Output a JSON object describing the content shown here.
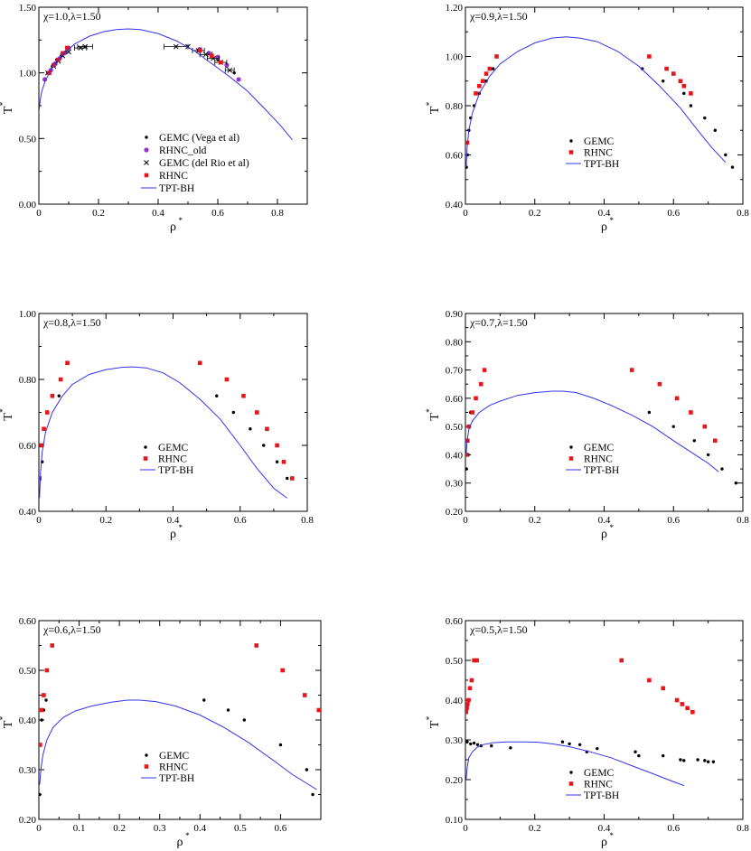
{
  "chart_data": [
    {
      "type": "scatter",
      "title": "χ=1.0,λ=1.50",
      "xlabel": "ρ",
      "xlabel_sup": "*",
      "ylabel": "T",
      "ylabel_sup": "*",
      "xlim": [
        0,
        0.9
      ],
      "ylim": [
        0,
        1.5
      ],
      "xticks": [
        0,
        0.2,
        0.4,
        0.6,
        0.8
      ],
      "xtick_labels": [
        "0",
        "0.2",
        "0.4",
        "0.6",
        "0.8"
      ],
      "yticks": [
        0,
        0.5,
        1.0,
        1.5
      ],
      "ytick_labels": [
        "0.00",
        "0.50",
        "1.00",
        "1.50"
      ],
      "legend_position": "bottom-center",
      "series": [
        {
          "name": "GEMC (Vega et al)",
          "marker": "dot",
          "color": "#000000",
          "x": [
            0.03,
            0.045,
            0.06,
            0.075,
            0.09,
            0.58,
            0.6,
            0.63,
            0.655
          ],
          "y": [
            1.0,
            1.05,
            1.1,
            1.13,
            1.16,
            1.13,
            1.1,
            1.05,
            1.0
          ]
        },
        {
          "name": "RHNC_old",
          "marker": "circle",
          "color": "#9933cc",
          "x": [
            0.02,
            0.04,
            0.055,
            0.07,
            0.085,
            0.1,
            0.54,
            0.57,
            0.6,
            0.63,
            0.67
          ],
          "y": [
            0.95,
            1.02,
            1.07,
            1.11,
            1.15,
            1.19,
            1.18,
            1.15,
            1.12,
            1.06,
            0.95
          ]
        },
        {
          "name": "GEMC (del Rio et al)",
          "marker": "cross",
          "color": "#000000",
          "x": [
            0.03,
            0.05,
            0.065,
            0.08,
            0.1,
            0.14,
            0.155,
            0.46,
            0.5,
            0.535,
            0.56,
            0.585,
            0.61,
            0.64
          ],
          "y": [
            1.0,
            1.05,
            1.09,
            1.13,
            1.16,
            1.19,
            1.2,
            1.2,
            1.2,
            1.17,
            1.14,
            1.11,
            1.08,
            1.02
          ],
          "xerr": [
            0,
            0,
            0,
            0,
            0,
            0.02,
            0.025,
            0.04,
            0,
            0.02,
            0.02,
            0.02,
            0.02,
            0.015
          ]
        },
        {
          "name": "RHNC",
          "marker": "square",
          "color": "#e8151b",
          "x": [
            0.035,
            0.05,
            0.065,
            0.08,
            0.095,
            0.54,
            0.58,
            0.61
          ],
          "y": [
            1.0,
            1.06,
            1.1,
            1.15,
            1.19,
            1.17,
            1.13,
            1.08
          ]
        },
        {
          "name": "TPT-BH",
          "marker": "line",
          "color": "#3333ee",
          "x": [
            0,
            0.005,
            0.01,
            0.02,
            0.035,
            0.05,
            0.08,
            0.12,
            0.17,
            0.22,
            0.26,
            0.3,
            0.34,
            0.4,
            0.46,
            0.52,
            0.58,
            0.64,
            0.7,
            0.76,
            0.81,
            0.85
          ],
          "y": [
            0.7,
            0.8,
            0.86,
            0.93,
            1.0,
            1.06,
            1.14,
            1.22,
            1.28,
            1.315,
            1.33,
            1.335,
            1.33,
            1.3,
            1.245,
            1.17,
            1.07,
            0.97,
            0.86,
            0.72,
            0.6,
            0.49
          ]
        }
      ]
    },
    {
      "type": "scatter",
      "title": "χ=0.9,λ=1.50",
      "xlabel": "ρ",
      "xlabel_sup": "*",
      "ylabel": "T",
      "ylabel_sup": "*",
      "xlim": [
        0,
        0.8
      ],
      "ylim": [
        0.4,
        1.2
      ],
      "xticks": [
        0,
        0.2,
        0.4,
        0.6,
        0.8
      ],
      "xtick_labels": [
        "0",
        "0.2",
        "0.4",
        "0.6",
        "0.8"
      ],
      "yticks": [
        0.4,
        0.6,
        0.8,
        1.0,
        1.2
      ],
      "ytick_labels": [
        "0.40",
        "0.60",
        "0.80",
        "1.00",
        "1.20"
      ],
      "legend_position": "center",
      "series": [
        {
          "name": "GEMC",
          "marker": "dot",
          "color": "#000000",
          "x": [
            0.003,
            0.006,
            0.01,
            0.015,
            0.025,
            0.04,
            0.06,
            0.08,
            0.51,
            0.57,
            0.63,
            0.65,
            0.69,
            0.72,
            0.75,
            0.77
          ],
          "y": [
            0.55,
            0.6,
            0.7,
            0.75,
            0.8,
            0.85,
            0.9,
            0.95,
            0.95,
            0.9,
            0.85,
            0.8,
            0.75,
            0.7,
            0.6,
            0.55
          ]
        },
        {
          "name": "RHNC",
          "marker": "square",
          "color": "#e8151b",
          "x": [
            0.005,
            0.03,
            0.04,
            0.05,
            0.06,
            0.07,
            0.09,
            0.53,
            0.58,
            0.6,
            0.62,
            0.63,
            0.65
          ],
          "y": [
            0.65,
            0.85,
            0.88,
            0.9,
            0.93,
            0.95,
            1.0,
            1.0,
            0.95,
            0.93,
            0.9,
            0.88,
            0.85
          ]
        },
        {
          "name": "TPT-BH",
          "marker": "line",
          "color": "#3333ee",
          "x": [
            0.002,
            0.005,
            0.01,
            0.02,
            0.04,
            0.07,
            0.1,
            0.15,
            0.2,
            0.25,
            0.29,
            0.33,
            0.38,
            0.44,
            0.5,
            0.56,
            0.62,
            0.67,
            0.71,
            0.75
          ],
          "y": [
            0.55,
            0.63,
            0.7,
            0.77,
            0.85,
            0.92,
            0.97,
            1.02,
            1.055,
            1.075,
            1.08,
            1.075,
            1.06,
            1.02,
            0.96,
            0.88,
            0.79,
            0.7,
            0.63,
            0.57
          ]
        }
      ]
    },
    {
      "type": "scatter",
      "title": "χ=0.8,λ=1.50",
      "xlabel": "ρ",
      "xlabel_sup": "*",
      "ylabel": "T",
      "ylabel_sup": "*",
      "xlim": [
        0,
        0.8
      ],
      "ylim": [
        0.4,
        1.0
      ],
      "xticks": [
        0,
        0.2,
        0.4,
        0.6,
        0.8
      ],
      "xtick_labels": [
        "0",
        "0.2",
        "0.4",
        "0.6",
        "0.8"
      ],
      "yticks": [
        0.4,
        0.6,
        0.8,
        1.0
      ],
      "ytick_labels": [
        "0.40",
        "0.60",
        "0.80",
        "1.00"
      ],
      "legend_position": "center",
      "series": [
        {
          "name": "GEMC",
          "marker": "dot",
          "color": "#000000",
          "x": [
            0.002,
            0.01,
            0.04,
            0.06,
            0.53,
            0.58,
            0.63,
            0.67,
            0.71,
            0.74
          ],
          "y": [
            0.5,
            0.55,
            0.75,
            0.75,
            0.75,
            0.7,
            0.65,
            0.6,
            0.55,
            0.5
          ]
        },
        {
          "name": "RHNC",
          "marker": "square",
          "color": "#e8151b",
          "x": [
            0.002,
            0.008,
            0.015,
            0.025,
            0.04,
            0.065,
            0.085,
            0.48,
            0.56,
            0.61,
            0.65,
            0.68,
            0.71,
            0.73,
            0.755
          ],
          "y": [
            0.5,
            0.6,
            0.65,
            0.7,
            0.75,
            0.8,
            0.85,
            0.85,
            0.8,
            0.75,
            0.7,
            0.65,
            0.6,
            0.55,
            0.5
          ]
        },
        {
          "name": "TPT-BH",
          "marker": "line",
          "color": "#3333ee",
          "x": [
            0.002,
            0.005,
            0.01,
            0.02,
            0.04,
            0.07,
            0.1,
            0.15,
            0.2,
            0.25,
            0.28,
            0.32,
            0.37,
            0.42,
            0.48,
            0.54,
            0.6,
            0.65,
            0.7,
            0.74
          ],
          "y": [
            0.44,
            0.52,
            0.58,
            0.64,
            0.7,
            0.75,
            0.785,
            0.815,
            0.83,
            0.837,
            0.838,
            0.835,
            0.82,
            0.79,
            0.74,
            0.68,
            0.6,
            0.53,
            0.47,
            0.44
          ]
        }
      ]
    },
    {
      "type": "scatter",
      "title": "χ=0.7,λ=1.50",
      "xlabel": "ρ",
      "xlabel_sup": "*",
      "ylabel": "T",
      "ylabel_sup": "*",
      "xlim": [
        0,
        0.8
      ],
      "ylim": [
        0.2,
        0.9
      ],
      "xticks": [
        0,
        0.2,
        0.4,
        0.6,
        0.8
      ],
      "xtick_labels": [
        "0",
        "0.2",
        "0.4",
        "0.6",
        "0.8"
      ],
      "yticks": [
        0.2,
        0.3,
        0.4,
        0.5,
        0.6,
        0.7,
        0.8,
        0.9
      ],
      "ytick_labels": [
        "0.20",
        "0.30",
        "0.40",
        "0.50",
        "0.60",
        "0.70",
        "0.80",
        "0.90"
      ],
      "legend_position": "center-right",
      "series": [
        {
          "name": "GEMC",
          "marker": "dot",
          "color": "#000000",
          "x": [
            0.003,
            0.008,
            0.015,
            0.53,
            0.6,
            0.66,
            0.7,
            0.74,
            0.78
          ],
          "y": [
            0.35,
            0.4,
            0.55,
            0.55,
            0.5,
            0.45,
            0.4,
            0.35,
            0.3
          ]
        },
        {
          "name": "RHNC",
          "marker": "square",
          "color": "#e8151b",
          "x": [
            0.003,
            0.006,
            0.01,
            0.02,
            0.03,
            0.045,
            0.055,
            0.48,
            0.56,
            0.61,
            0.65,
            0.69,
            0.72
          ],
          "y": [
            0.4,
            0.45,
            0.5,
            0.55,
            0.6,
            0.65,
            0.7,
            0.7,
            0.65,
            0.6,
            0.55,
            0.5,
            0.45
          ]
        },
        {
          "name": "TPT-BH",
          "marker": "line",
          "color": "#3333ee",
          "x": [
            0.002,
            0.005,
            0.01,
            0.02,
            0.04,
            0.07,
            0.1,
            0.15,
            0.2,
            0.25,
            0.28,
            0.32,
            0.37,
            0.42,
            0.48,
            0.54,
            0.6,
            0.65,
            0.7,
            0.73
          ],
          "y": [
            0.4,
            0.45,
            0.49,
            0.52,
            0.55,
            0.575,
            0.59,
            0.61,
            0.62,
            0.625,
            0.625,
            0.62,
            0.6,
            0.575,
            0.54,
            0.5,
            0.45,
            0.41,
            0.37,
            0.34
          ]
        }
      ]
    },
    {
      "type": "scatter",
      "title": "χ=0.6,λ=1.50",
      "xlabel": "ρ",
      "xlabel_sup": "*",
      "ylabel": "T",
      "ylabel_sup": "*",
      "xlim": [
        0,
        0.7
      ],
      "ylim": [
        0.2,
        0.6
      ],
      "xticks": [
        0,
        0.1,
        0.2,
        0.3,
        0.4,
        0.5,
        0.6
      ],
      "xtick_labels": [
        "0",
        "0.1",
        "0.2",
        "0.3",
        "0.4",
        "0.5",
        "0.6"
      ],
      "yticks": [
        0.2,
        0.3,
        0.4,
        0.5,
        0.6
      ],
      "ytick_labels": [
        "0.20",
        "0.30",
        "0.40",
        "0.50",
        "0.60"
      ],
      "legend_position": "bottom-left",
      "series": [
        {
          "name": "GEMC",
          "marker": "dot",
          "color": "#000000",
          "x": [
            0.002,
            0.004,
            0.007,
            0.012,
            0.018,
            0.41,
            0.47,
            0.51,
            0.6,
            0.665,
            0.68
          ],
          "y": [
            0.25,
            0.35,
            0.4,
            0.42,
            0.44,
            0.44,
            0.42,
            0.4,
            0.35,
            0.3,
            0.25
          ]
        },
        {
          "name": "RHNC",
          "marker": "square",
          "color": "#e8151b",
          "x": [
            0.003,
            0.007,
            0.012,
            0.02,
            0.033,
            0.54,
            0.605,
            0.66,
            0.695
          ],
          "y": [
            0.35,
            0.42,
            0.45,
            0.5,
            0.55,
            0.55,
            0.5,
            0.45,
            0.42
          ]
        },
        {
          "name": "TPT-BH",
          "marker": "line",
          "color": "#3333ee",
          "x": [
            0.002,
            0.005,
            0.01,
            0.02,
            0.035,
            0.06,
            0.09,
            0.13,
            0.18,
            0.22,
            0.25,
            0.29,
            0.34,
            0.4,
            0.46,
            0.52,
            0.58,
            0.63,
            0.67,
            0.69
          ],
          "y": [
            0.27,
            0.3,
            0.33,
            0.36,
            0.385,
            0.405,
            0.418,
            0.428,
            0.436,
            0.44,
            0.44,
            0.437,
            0.428,
            0.41,
            0.385,
            0.355,
            0.32,
            0.29,
            0.27,
            0.26
          ]
        }
      ]
    },
    {
      "type": "scatter",
      "title": "χ=0.5,λ=1.50",
      "xlabel": "ρ",
      "xlabel_sup": "*",
      "ylabel": "T",
      "ylabel_sup": "*",
      "xlim": [
        0,
        0.8
      ],
      "ylim": [
        0.1,
        0.6
      ],
      "xticks": [
        0,
        0.2,
        0.4,
        0.6,
        0.8
      ],
      "xtick_labels": [
        "0",
        "0.2",
        "0.4",
        "0.6",
        "0.8"
      ],
      "yticks": [
        0.1,
        0.2,
        0.3,
        0.4,
        0.5,
        0.6
      ],
      "ytick_labels": [
        "0.10",
        "0.20",
        "0.30",
        "0.40",
        "0.50",
        "0.60"
      ],
      "legend_position": "bottom-center",
      "series": [
        {
          "name": "GEMC",
          "marker": "dot",
          "color": "#000000",
          "x": [
            0.005,
            0.015,
            0.025,
            0.035,
            0.045,
            0.075,
            0.13,
            0.28,
            0.3,
            0.33,
            0.35,
            0.38,
            0.49,
            0.5,
            0.57,
            0.62,
            0.63,
            0.67,
            0.69,
            0.7,
            0.715
          ],
          "y": [
            0.295,
            0.29,
            0.292,
            0.288,
            0.285,
            0.285,
            0.28,
            0.295,
            0.29,
            0.288,
            0.27,
            0.278,
            0.27,
            0.26,
            0.26,
            0.25,
            0.248,
            0.25,
            0.248,
            0.245,
            0.245
          ]
        },
        {
          "name": "RHNC",
          "marker": "square",
          "color": "#e8151b",
          "x": [
            0.002,
            0.004,
            0.006,
            0.009,
            0.013,
            0.018,
            0.025,
            0.033,
            0.45,
            0.53,
            0.57,
            0.61,
            0.625,
            0.64,
            0.655
          ],
          "y": [
            0.37,
            0.38,
            0.39,
            0.4,
            0.43,
            0.45,
            0.5,
            0.5,
            0.5,
            0.45,
            0.43,
            0.4,
            0.39,
            0.38,
            0.37
          ]
        },
        {
          "name": "TPT-BH",
          "marker": "line",
          "color": "#3333ee",
          "x": [
            0.002,
            0.005,
            0.01,
            0.02,
            0.035,
            0.05,
            0.08,
            0.12,
            0.17,
            0.21,
            0.25,
            0.3,
            0.36,
            0.42,
            0.48,
            0.54,
            0.59,
            0.63
          ],
          "y": [
            0.2,
            0.23,
            0.255,
            0.27,
            0.282,
            0.288,
            0.293,
            0.295,
            0.295,
            0.294,
            0.29,
            0.283,
            0.27,
            0.255,
            0.235,
            0.215,
            0.198,
            0.185
          ]
        }
      ]
    }
  ]
}
